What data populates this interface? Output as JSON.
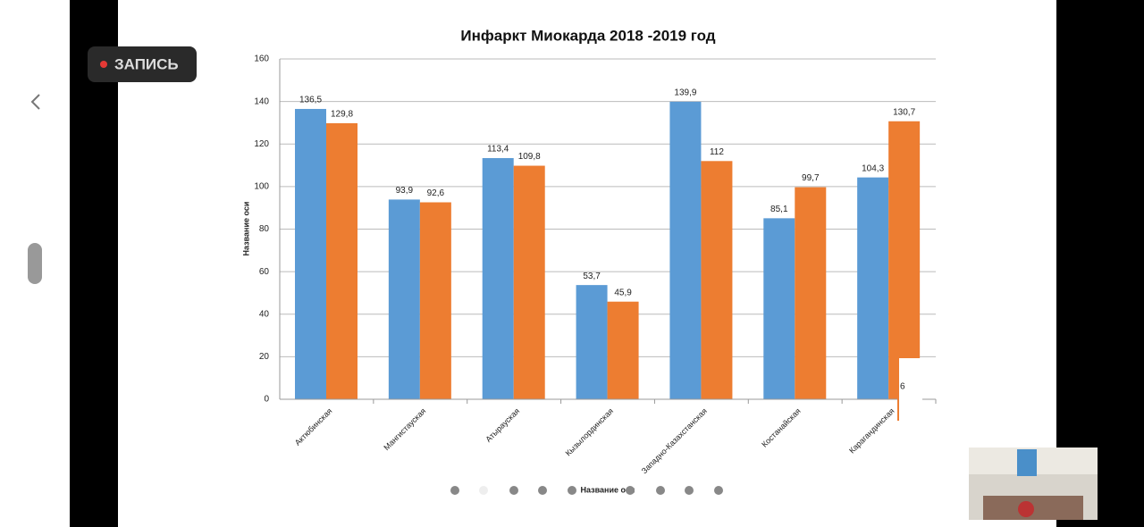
{
  "ui": {
    "record_label": "ЗАПИСЬ",
    "overlay_fragment": "6"
  },
  "chart_data": {
    "type": "bar",
    "title": "Инфаркт Миокарда 2018 -2019 год",
    "y_label": "Название оси",
    "x_label": "Название оси",
    "categories": [
      "Актюбинская",
      "Мангистауская",
      "Атырауская",
      "Кызылординская",
      "Западно-Казахстанская",
      "Костанайская",
      "Карагандинская"
    ],
    "series": [
      {
        "color": "#5b9bd5",
        "values": [
          136.5,
          93.9,
          113.4,
          53.7,
          139.9,
          85.1,
          104.3
        ],
        "value_labels": [
          "136,5",
          "93,9",
          "113,4",
          "53,7",
          "139,9",
          "85,1",
          "104,3"
        ]
      },
      {
        "color": "#ed7d31",
        "values": [
          129.8,
          92.6,
          109.8,
          45.9,
          112,
          99.7,
          130.7
        ],
        "value_labels": [
          "129,8",
          "92,6",
          "109,8",
          "45,9",
          "112",
          "99,7",
          "130,7"
        ]
      }
    ],
    "ylim": [
      0,
      160
    ],
    "yticks": [
      0,
      20,
      40,
      60,
      80,
      100,
      120,
      140,
      160
    ],
    "grid": true
  }
}
